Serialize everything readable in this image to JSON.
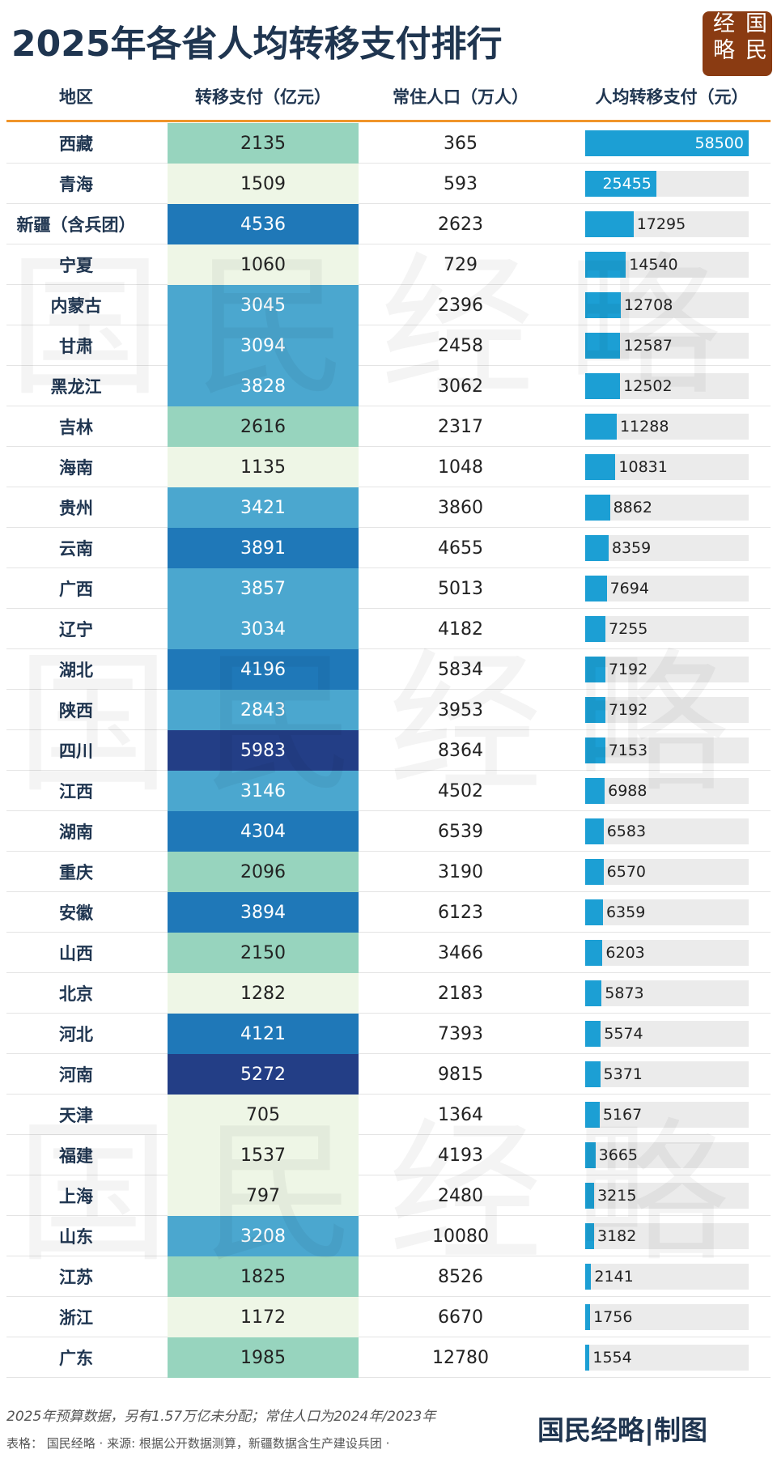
{
  "header": {
    "title": "2025年各省人均转移支付排行",
    "logo": "国民经略"
  },
  "table": {
    "columns": [
      "地区",
      "转移支付（亿元）",
      "常住人口（万人）",
      "人均转移支付（元）"
    ],
    "rows": [
      [
        "西藏",
        2135,
        365,
        58500
      ],
      [
        "青海",
        1509,
        593,
        25455
      ],
      [
        "新疆（含兵团）",
        4536,
        2623,
        17295
      ],
      [
        "宁夏",
        1060,
        729,
        14540
      ],
      [
        "内蒙古",
        3045,
        2396,
        12708
      ],
      [
        "甘肃",
        3094,
        2458,
        12587
      ],
      [
        "黑龙江",
        3828,
        3062,
        12502
      ],
      [
        "吉林",
        2616,
        2317,
        11288
      ],
      [
        "海南",
        1135,
        1048,
        10831
      ],
      [
        "贵州",
        3421,
        3860,
        8862
      ],
      [
        "云南",
        3891,
        4655,
        8359
      ],
      [
        "广西",
        3857,
        5013,
        7694
      ],
      [
        "辽宁",
        3034,
        4182,
        7255
      ],
      [
        "湖北",
        4196,
        5834,
        7192
      ],
      [
        "陕西",
        2843,
        3953,
        7192
      ],
      [
        "四川",
        5983,
        8364,
        7153
      ],
      [
        "江西",
        3146,
        4502,
        6988
      ],
      [
        "湖南",
        4304,
        6539,
        6583
      ],
      [
        "重庆",
        2096,
        3190,
        6570
      ],
      [
        "安徽",
        3894,
        6123,
        6359
      ],
      [
        "山西",
        2150,
        3466,
        6203
      ],
      [
        "北京",
        1282,
        2183,
        5873
      ],
      [
        "河北",
        4121,
        7393,
        5574
      ],
      [
        "河南",
        5272,
        9815,
        5371
      ],
      [
        "天津",
        705,
        1364,
        5167
      ],
      [
        "福建",
        1537,
        4193,
        3665
      ],
      [
        "上海",
        797,
        2480,
        3215
      ],
      [
        "山东",
        3208,
        10080,
        3182
      ],
      [
        "江苏",
        1825,
        8526,
        2141
      ],
      [
        "浙江",
        1172,
        6670,
        1756
      ],
      [
        "广东",
        1985,
        12780,
        1554
      ]
    ],
    "transfer_colors": [
      "#97d4be",
      "#eef6e6",
      "#1f78b8",
      "#eef6e6",
      "#4ba7cf",
      "#4ba7cf",
      "#4ba7cf",
      "#97d4be",
      "#eef6e6",
      "#4ba7cf",
      "#1f78b8",
      "#4ba7cf",
      "#4ba7cf",
      "#1f78b8",
      "#4ba7cf",
      "#233e86",
      "#4ba7cf",
      "#1f78b8",
      "#97d4be",
      "#1f78b8",
      "#97d4be",
      "#eef6e6",
      "#1f78b8",
      "#233e86",
      "#eef6e6",
      "#eef6e6",
      "#eef6e6",
      "#4ba7cf",
      "#97d4be",
      "#eef6e6",
      "#97d4be"
    ],
    "bar_color": "#1c9fd4"
  },
  "watermark": "国民经略",
  "footer": {
    "note": "2025年预算数据，另有1.57万亿未分配；常住人口为2024年/2023年",
    "source": "表格： 国民经略 · 来源: 根据公开数据测算，新疆数据含生产建设兵团 ·",
    "credit": "国民经略|制图"
  }
}
